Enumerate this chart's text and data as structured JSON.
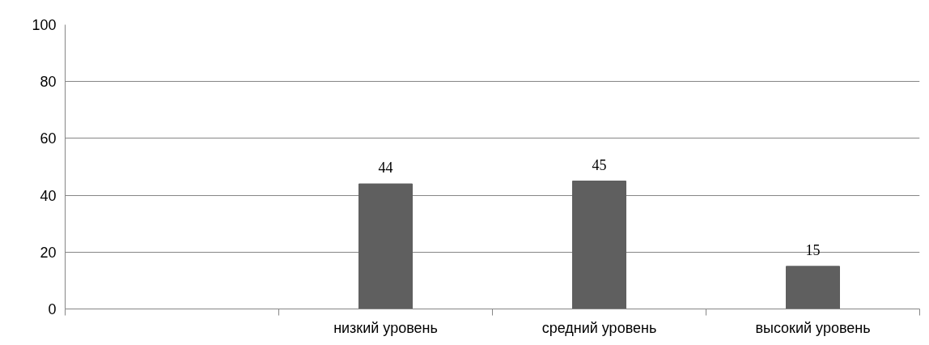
{
  "chart_data": {
    "type": "bar",
    "categories": [
      null,
      "низкий уровень",
      "средний уровень",
      "высокий уровень"
    ],
    "values": [
      null,
      44,
      45,
      15
    ],
    "color": "#5f5f5f",
    "ylim": [
      0,
      100
    ],
    "yticks": [
      0,
      20,
      40,
      60,
      80,
      100
    ],
    "grid": "y",
    "data_labels": true
  }
}
